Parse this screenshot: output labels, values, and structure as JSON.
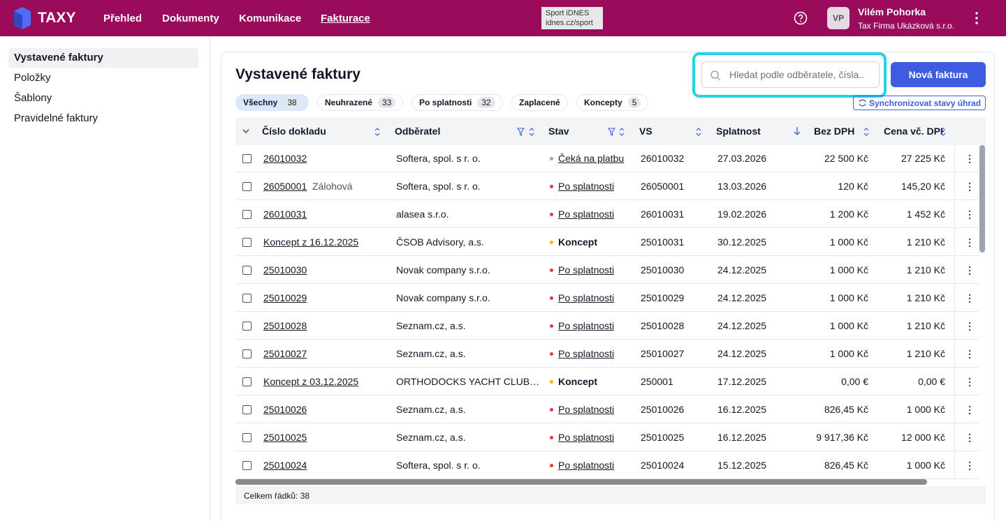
{
  "header": {
    "logo": "TAXY",
    "nav": [
      "Přehled",
      "Dokumenty",
      "Komunikace",
      "Fakturace"
    ],
    "active_nav": 3,
    "ad": [
      "Sport iDNES",
      "idnes.cz/sport"
    ],
    "avatar": "VP",
    "user_name": "Vilém Pohorka",
    "company": "Tax Firma Ukázková s.r.o."
  },
  "sidebar": {
    "items": [
      "Vystavené faktury",
      "Položky",
      "Šablony",
      "Pravidelné faktury"
    ],
    "active": 0
  },
  "main": {
    "title": "Vystavené faktury",
    "search_placeholder": "Hledat podle odběratele, čísla..",
    "new_button": "Nová faktura",
    "sync_button": "Synchronizovat stavy úhrad",
    "filters": [
      {
        "label": "Všechny",
        "count": 38
      },
      {
        "label": "Neuhrazené",
        "count": 33
      },
      {
        "label": "Po splatnosti",
        "count": 32
      },
      {
        "label": "Zaplacené"
      },
      {
        "label": "Koncepty",
        "count": 5
      }
    ],
    "active_filter": 0,
    "columns": [
      "Číslo dokladu",
      "Odběratel",
      "Stav",
      "VS",
      "Splatnost",
      "Bez DPH",
      "Cena vč. DPH"
    ],
    "rows": [
      {
        "number": "26010032",
        "customer": "Softera, spol. s r. o.",
        "status": "Čeká na platbu",
        "status_color": "#9ca3af",
        "status_link": true,
        "vs": "26010032",
        "due": "27.03.2026",
        "net": "22 500 Kč",
        "gross": "27 225 Kč"
      },
      {
        "number": "26050001",
        "note": "Zálohová",
        "customer": "Softera, spol. s r. o.",
        "status": "Po splatnosti",
        "status_color": "#e53935",
        "status_link": true,
        "vs": "26050001",
        "due": "13.03.2026",
        "net": "120 Kč",
        "gross": "145,20 Kč"
      },
      {
        "number": "26010031",
        "customer": "alasea s.r.o.",
        "status": "Po splatnosti",
        "status_color": "#e53935",
        "status_link": true,
        "vs": "26010031",
        "due": "19.02.2026",
        "net": "1 200 Kč",
        "gross": "1 452 Kč"
      },
      {
        "number": "Koncept z 16.12.2025",
        "customer": "ČSOB Advisory, a.s.",
        "status": "Koncept",
        "status_color": "#f5b400",
        "status_link": false,
        "vs": "25010031",
        "due": "30.12.2025",
        "net": "1 000 Kč",
        "gross": "1 210 Kč"
      },
      {
        "number": "25010030",
        "customer": "Novak company s.r.o.",
        "status": "Po splatnosti",
        "status_color": "#e53935",
        "status_link": true,
        "vs": "25010030",
        "due": "24.12.2025",
        "net": "1 000 Kč",
        "gross": "1 210 Kč"
      },
      {
        "number": "25010029",
        "customer": "Novak company s.r.o.",
        "status": "Po splatnosti",
        "status_color": "#e53935",
        "status_link": true,
        "vs": "25010029",
        "due": "24.12.2025",
        "net": "1 000 Kč",
        "gross": "1 210 Kč"
      },
      {
        "number": "25010028",
        "customer": "Seznam.cz, a.s.",
        "status": "Po splatnosti",
        "status_color": "#e53935",
        "status_link": true,
        "vs": "25010028",
        "due": "24.12.2025",
        "net": "1 000 Kč",
        "gross": "1 210 Kč"
      },
      {
        "number": "25010027",
        "customer": "Seznam.cz, a.s.",
        "status": "Po splatnosti",
        "status_color": "#e53935",
        "status_link": true,
        "vs": "25010027",
        "due": "24.12.2025",
        "net": "1 000 Kč",
        "gross": "1 210 Kč"
      },
      {
        "number": "Koncept z 03.12.2025",
        "customer": "ORTHODOCKS YACHT CLUB…",
        "status": "Koncept",
        "status_color": "#f5b400",
        "status_link": false,
        "vs": "250001",
        "due": "17.12.2025",
        "net": "0,00 €",
        "gross": "0,00 €"
      },
      {
        "number": "25010026",
        "customer": "Seznam.cz, a.s.",
        "status": "Po splatnosti",
        "status_color": "#e53935",
        "status_link": true,
        "vs": "25010026",
        "due": "16.12.2025",
        "net": "826,45 Kč",
        "gross": "1 000 Kč"
      },
      {
        "number": "25010025",
        "customer": "Seznam.cz, a.s.",
        "status": "Po splatnosti",
        "status_color": "#e53935",
        "status_link": true,
        "vs": "25010025",
        "due": "16.12.2025",
        "net": "9 917,36 Kč",
        "gross": "12 000 Kč"
      },
      {
        "number": "25010024",
        "customer": "Softera, spol. s r. o.",
        "status": "Po splatnosti",
        "status_color": "#e53935",
        "status_link": true,
        "vs": "25010024",
        "due": "15.12.2025",
        "net": "826,45 Kč",
        "gross": "1 000 Kč"
      }
    ],
    "footer": "Celkem řádků: 38"
  }
}
